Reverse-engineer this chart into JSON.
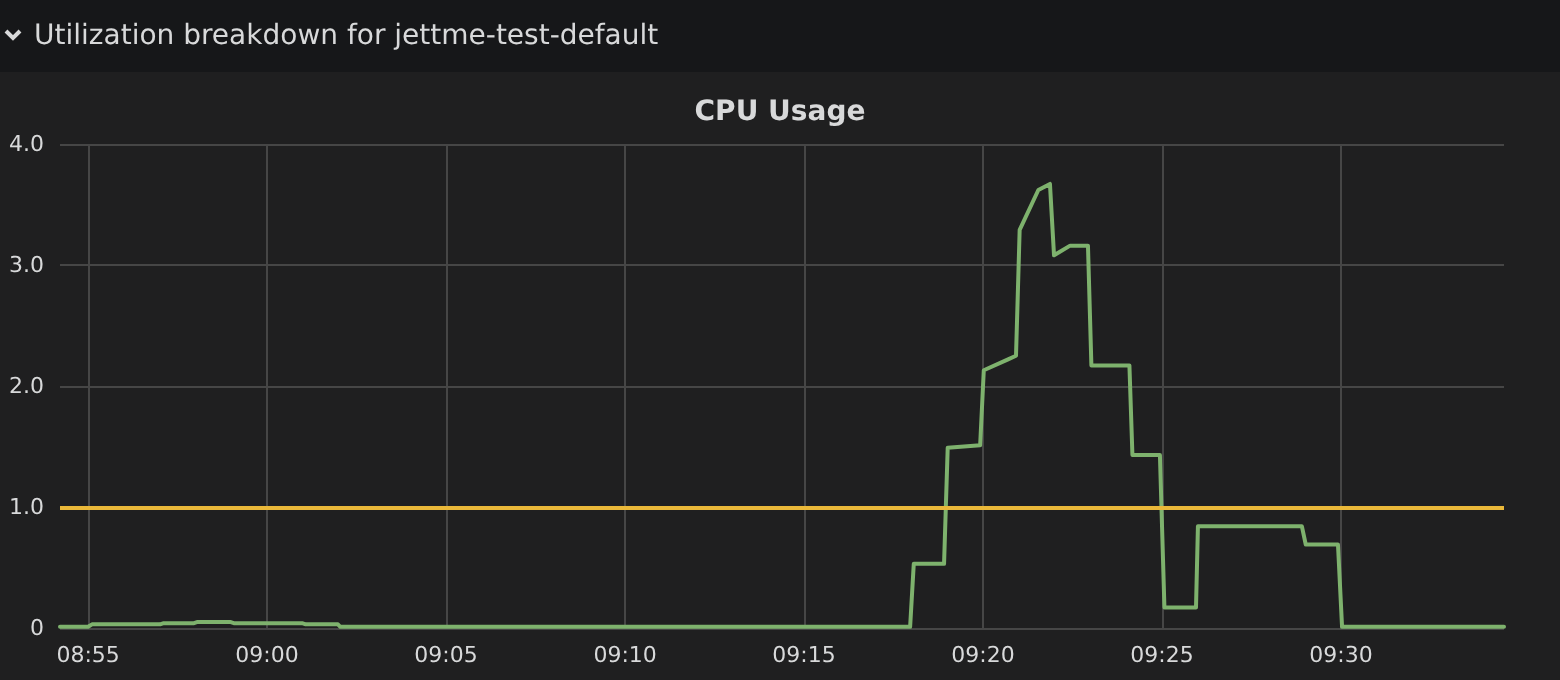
{
  "chart_data": {
    "type": "line",
    "title": "Utilization breakdown for jettme-test-default",
    "subtitle": "CPU Usage",
    "x": [
      8.9036,
      8.9167,
      8.9185,
      8.9502,
      8.9519,
      8.966,
      8.9677,
      8.9828,
      8.9845,
      9.0163,
      9.018,
      9.033,
      9.0341,
      9.2994,
      9.3011,
      9.3152,
      9.3169,
      9.332,
      9.3337,
      9.345,
      9.3487,
      9.3504,
      9.3591,
      9.3645,
      9.3664,
      9.3739,
      9.3822,
      9.3838,
      9.4015,
      9.4029,
      9.4157,
      9.4178,
      9.4325,
      9.4334,
      9.4818,
      9.4836,
      9.4986,
      9.5005,
      9.5759
    ],
    "series": [
      {
        "color": "#7eb26d",
        "values": [
          0.01,
          0.01,
          0.03,
          0.03,
          0.04,
          0.04,
          0.05,
          0.05,
          0.04,
          0.04,
          0.03,
          0.03,
          0.01,
          0.01,
          0.53,
          0.53,
          1.49,
          1.51,
          2.13,
          2.22,
          2.25,
          3.29,
          3.62,
          3.67,
          3.08,
          3.16,
          3.16,
          2.17,
          2.17,
          1.43,
          1.43,
          0.17,
          0.17,
          0.84,
          0.84,
          0.69,
          0.69,
          0.01,
          0.01
        ]
      }
    ],
    "xlim": [
      8.9036,
      9.5759
    ],
    "xticks": [
      {
        "value": 8.9167,
        "label": "08:55"
      },
      {
        "value": 9.0,
        "label": "09:00"
      },
      {
        "value": 9.0833,
        "label": "09:05"
      },
      {
        "value": 9.1667,
        "label": "09:10"
      },
      {
        "value": 9.25,
        "label": "09:15"
      },
      {
        "value": 9.3333,
        "label": "09:20"
      },
      {
        "value": 9.4167,
        "label": "09:25"
      },
      {
        "value": 9.5,
        "label": "09:30"
      }
    ],
    "ylim": [
      0,
      4
    ],
    "yticks": [
      0,
      {
        "value": 1,
        "label": "1.0"
      },
      {
        "value": 2,
        "label": "2.0"
      },
      {
        "value": 3,
        "label": "3.0"
      },
      {
        "value": 4,
        "label": "4.0"
      }
    ],
    "ref_lines": [
      {
        "axis": "y",
        "value": 1,
        "color": "#eab839"
      }
    ],
    "grid": true,
    "marker": "none",
    "line_style": "solid"
  }
}
